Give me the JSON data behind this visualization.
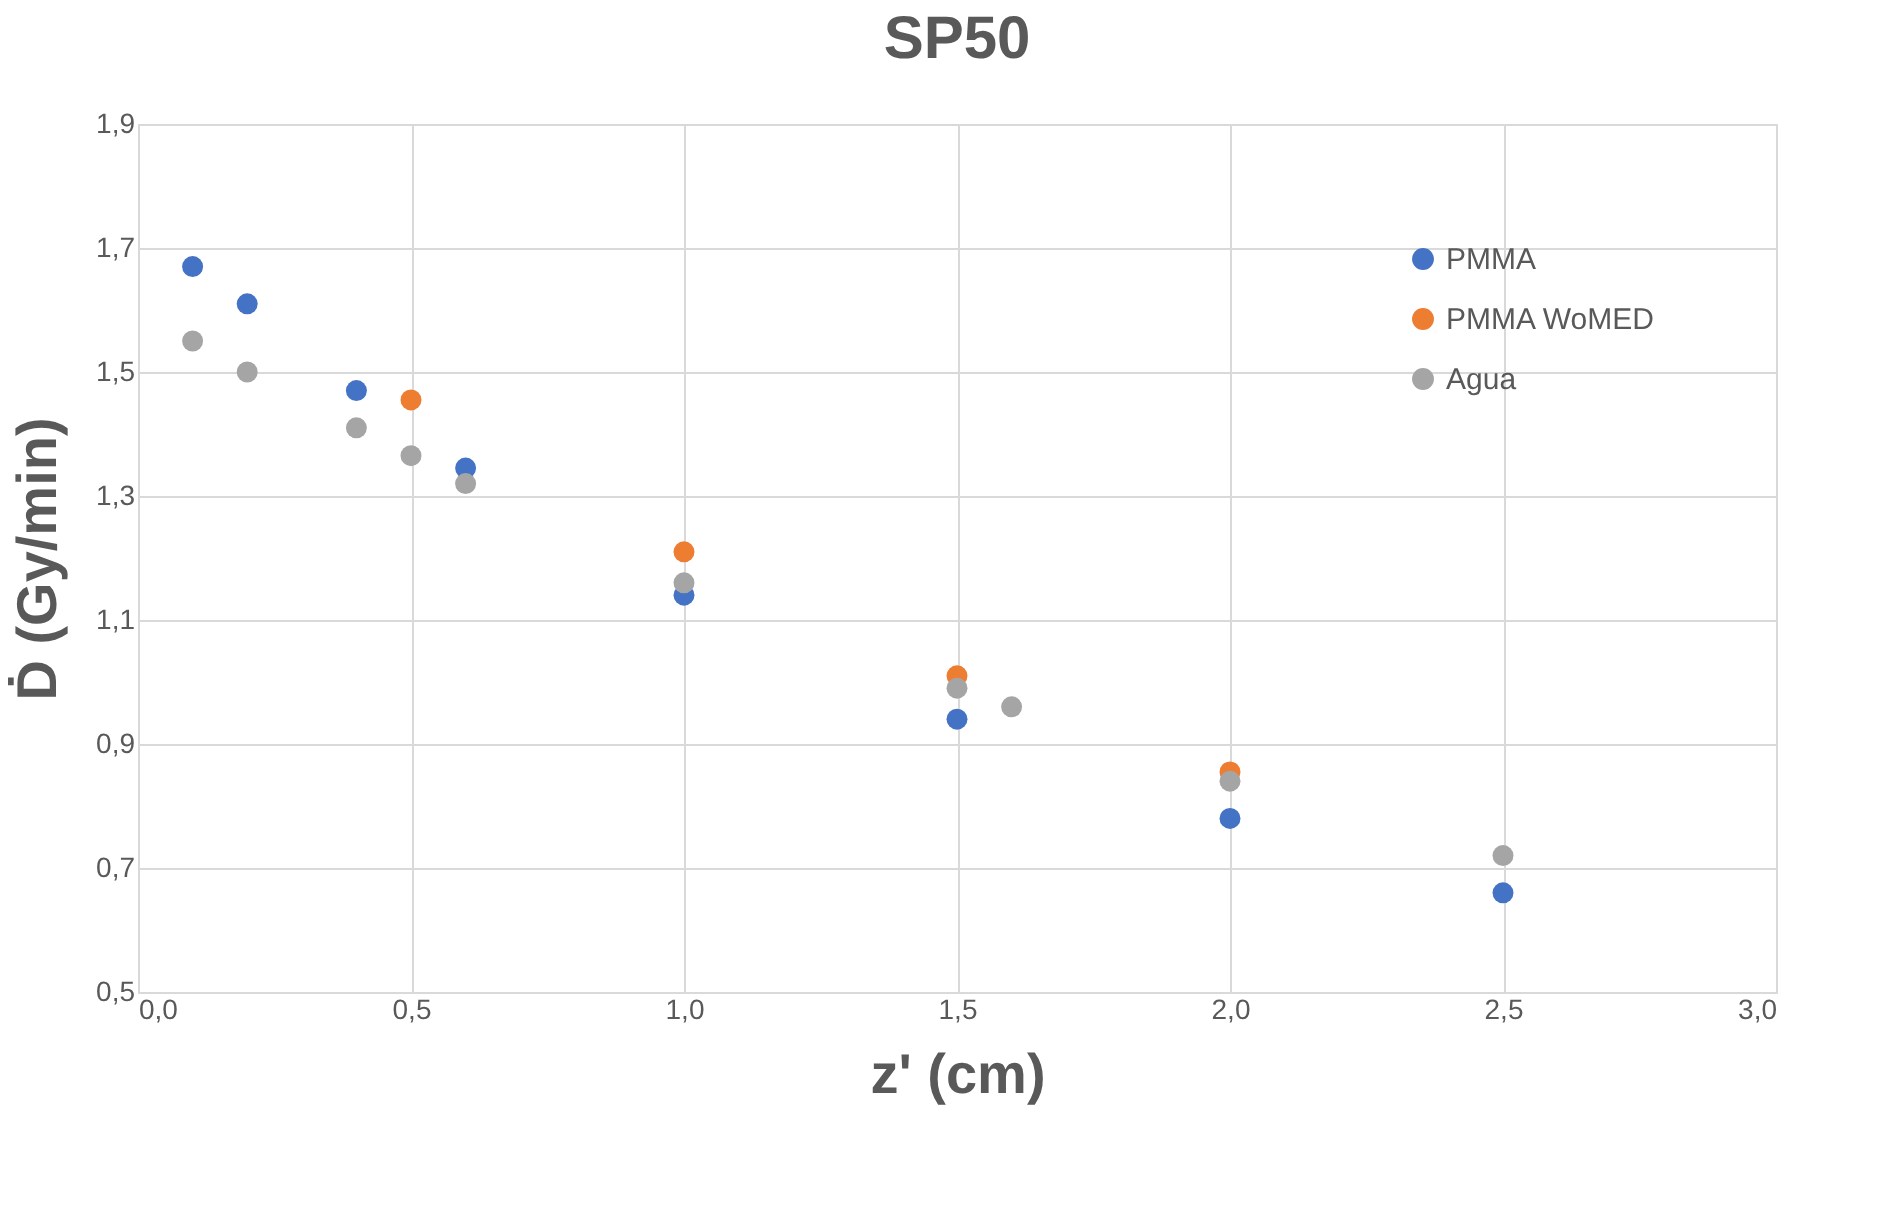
{
  "chart_data": {
    "type": "scatter",
    "title": "SP50",
    "xlabel": "z' (cm)",
    "ylabel": "Ḋ (Gy/min)",
    "series": [
      {
        "name": "PMMA",
        "color": "#4472c4",
        "x": [
          0.1,
          0.2,
          0.4,
          0.6,
          1.0,
          1.5,
          2.0,
          2.5
        ],
        "values": [
          1.67,
          1.61,
          1.47,
          1.345,
          1.14,
          0.94,
          0.78,
          0.66
        ]
      },
      {
        "name": "PMMA WoMED",
        "color": "#ed7d31",
        "x": [
          0.5,
          1.0,
          1.5,
          2.0
        ],
        "values": [
          1.455,
          1.21,
          1.01,
          0.855
        ]
      },
      {
        "name": "Agua",
        "color": "#a5a5a5",
        "x": [
          0.1,
          0.2,
          0.4,
          0.5,
          0.6,
          1.0,
          1.5,
          1.6,
          2.0,
          2.5
        ],
        "values": [
          1.55,
          1.5,
          1.41,
          1.365,
          1.32,
          1.16,
          0.99,
          0.96,
          0.84,
          0.72
        ]
      }
    ],
    "xlim": [
      0,
      3
    ],
    "xticks": [
      {
        "value": 0,
        "label": "0,0"
      },
      {
        "value": 0.5,
        "label": "0,5"
      },
      {
        "value": 1,
        "label": "1,0"
      },
      {
        "value": 1.5,
        "label": "1,5"
      },
      {
        "value": 2,
        "label": "2,0"
      },
      {
        "value": 2.5,
        "label": "2,5"
      },
      {
        "value": 3,
        "label": "3,0"
      }
    ],
    "ylim": [
      0.5,
      1.9
    ],
    "yticks": [
      {
        "value": 0.5,
        "label": "0,5"
      },
      {
        "value": 0.7,
        "label": "0,7"
      },
      {
        "value": 0.9,
        "label": "0,9"
      },
      {
        "value": 1.1,
        "label": "1,1"
      },
      {
        "value": 1.3,
        "label": "1,3"
      },
      {
        "value": 1.5,
        "label": "1,5"
      },
      {
        "value": 1.7,
        "label": "1,7"
      },
      {
        "value": 1.9,
        "label": "1,9"
      }
    ],
    "grid": true,
    "legend": "top right",
    "marker": "circle"
  }
}
